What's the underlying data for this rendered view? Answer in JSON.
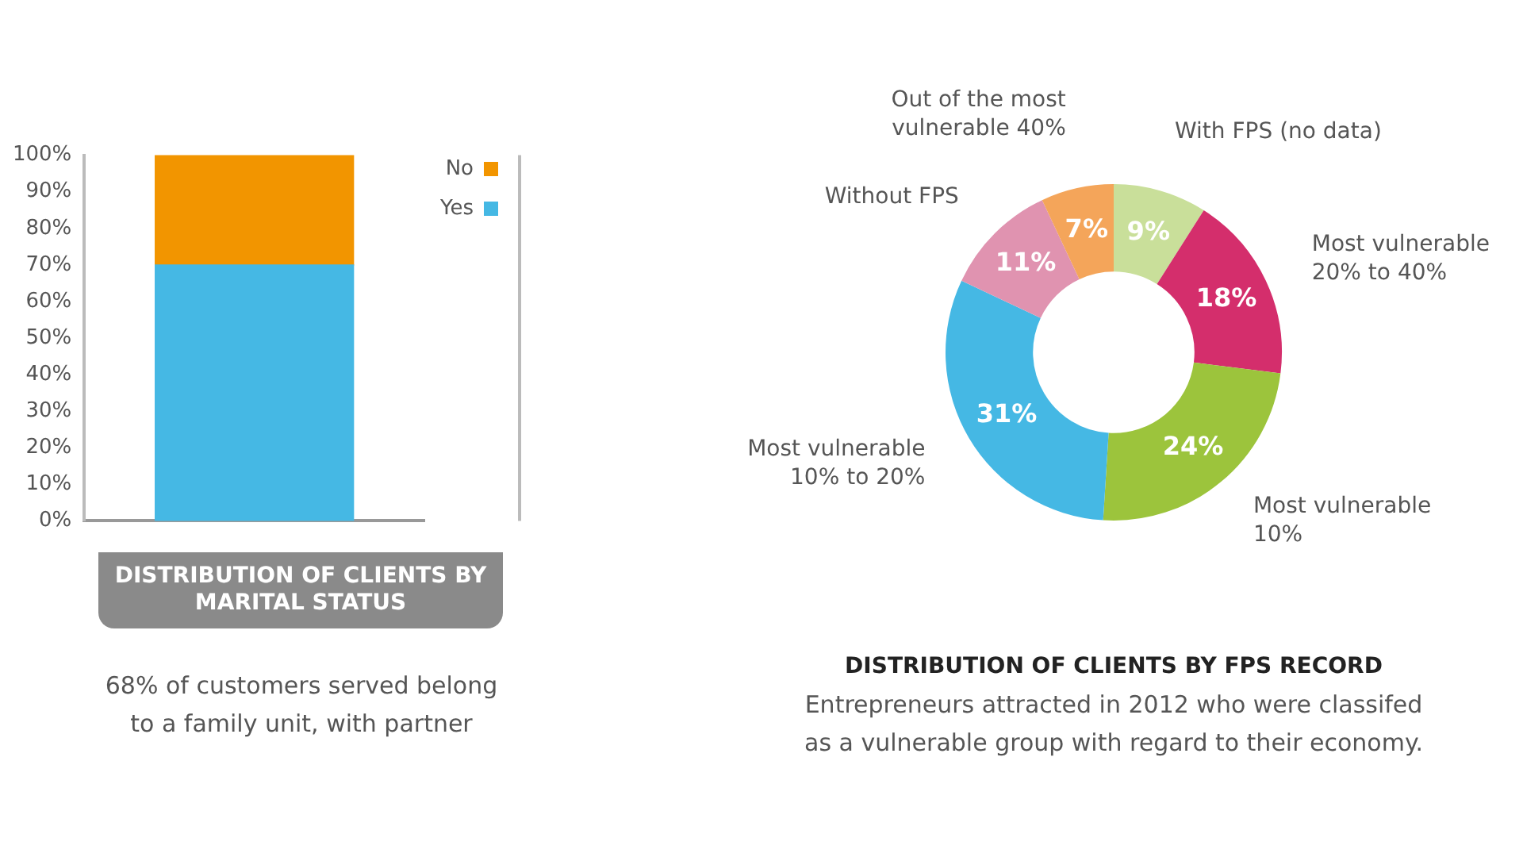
{
  "chart_data": [
    {
      "type": "bar",
      "title": "DISTRIBUTION OF CLIENTS BY MARITAL STATUS",
      "categories": [
        null
      ],
      "stacked": true,
      "series": [
        {
          "name": "Yes",
          "color": "#45b8e4",
          "values": [
            70
          ]
        },
        {
          "name": "No",
          "color": "#f29500",
          "values": [
            30
          ]
        }
      ],
      "ylim": [
        0,
        100
      ],
      "yticks": [
        {
          "value": 0,
          "label": "0%"
        },
        {
          "value": 10,
          "label": "10%"
        },
        {
          "value": 20,
          "label": "20%"
        },
        {
          "value": 30,
          "label": "30%"
        },
        {
          "value": 40,
          "label": "40%"
        },
        {
          "value": 50,
          "label": "50%"
        },
        {
          "value": 60,
          "label": "60%"
        },
        {
          "value": 70,
          "label": "70%"
        },
        {
          "value": 80,
          "label": "80%"
        },
        {
          "value": 90,
          "label": "90%"
        },
        {
          "value": 100,
          "label": "100%"
        }
      ],
      "grid": false,
      "legend": "top right",
      "tick_labels": "y",
      "annotations": [
        "68% of customers served belong to a family unit, with partner"
      ]
    },
    {
      "type": "donut",
      "title": "DISTRIBUTION OF CLIENTS BY FPS RECORD",
      "subtitle": "Entrepreneurs attracted in 2012 who were classifed as a vulnerable group with regard to their economy.",
      "categories": [
        "With FPS (no data)",
        "Most vulnerable 20% to 40%",
        "Most vulnerable 10%",
        "Most vulnerable 10% to 20%",
        "Without FPS",
        "Out of the most vulnerable 40%"
      ],
      "values": [
        9,
        18,
        24,
        31,
        11,
        7
      ],
      "value_labels": [
        "9%",
        "18%",
        "24%",
        "31%",
        "11%",
        "7%"
      ],
      "colors": [
        "#c9df9a",
        "#d42e6c",
        "#9cc43c",
        "#45b8e4",
        "#e093b0",
        "#f4a55a"
      ],
      "legend": false
    }
  ]
}
